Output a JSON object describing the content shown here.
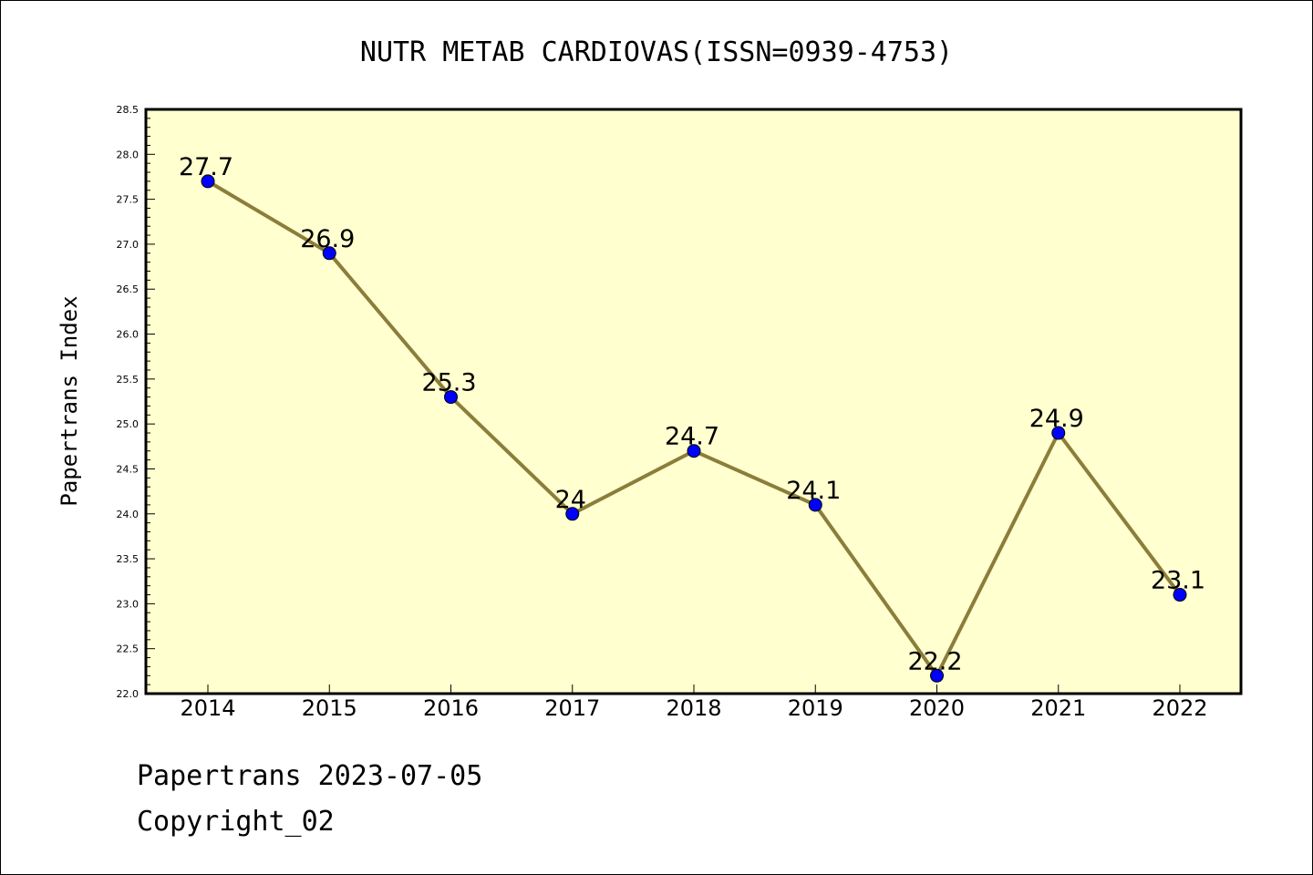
{
  "chart_data": {
    "type": "line",
    "title": "NUTR METAB CARDIOVAS(ISSN=0939-4753)",
    "xlabel": "",
    "ylabel": "Papertrans Index",
    "categories": [
      "2014",
      "2015",
      "2016",
      "2017",
      "2018",
      "2019",
      "2020",
      "2021",
      "2022"
    ],
    "values": [
      27.7,
      26.9,
      25.3,
      24,
      24.7,
      24.1,
      22.2,
      24.9,
      23.1
    ],
    "data_labels": [
      "27.7",
      "26.9",
      "25.3",
      "24",
      "24.7",
      "24.1",
      "22.2",
      "24.9",
      "23.1"
    ],
    "ylim": [
      22.0,
      28.5
    ],
    "yticks": [
      "22.0",
      "22.5",
      "23.0",
      "23.5",
      "24.0",
      "24.5",
      "25.0",
      "25.5",
      "26.0",
      "26.5",
      "27.0",
      "27.5",
      "28.0",
      "28.5"
    ],
    "grid": false,
    "legend": "none",
    "colors": {
      "line": "#8b7d3a",
      "marker": "#0000ff",
      "plot_background": "#ffffd0"
    }
  },
  "footer": {
    "line1": "Papertrans 2023-07-05",
    "line2": "Copyright_02"
  }
}
